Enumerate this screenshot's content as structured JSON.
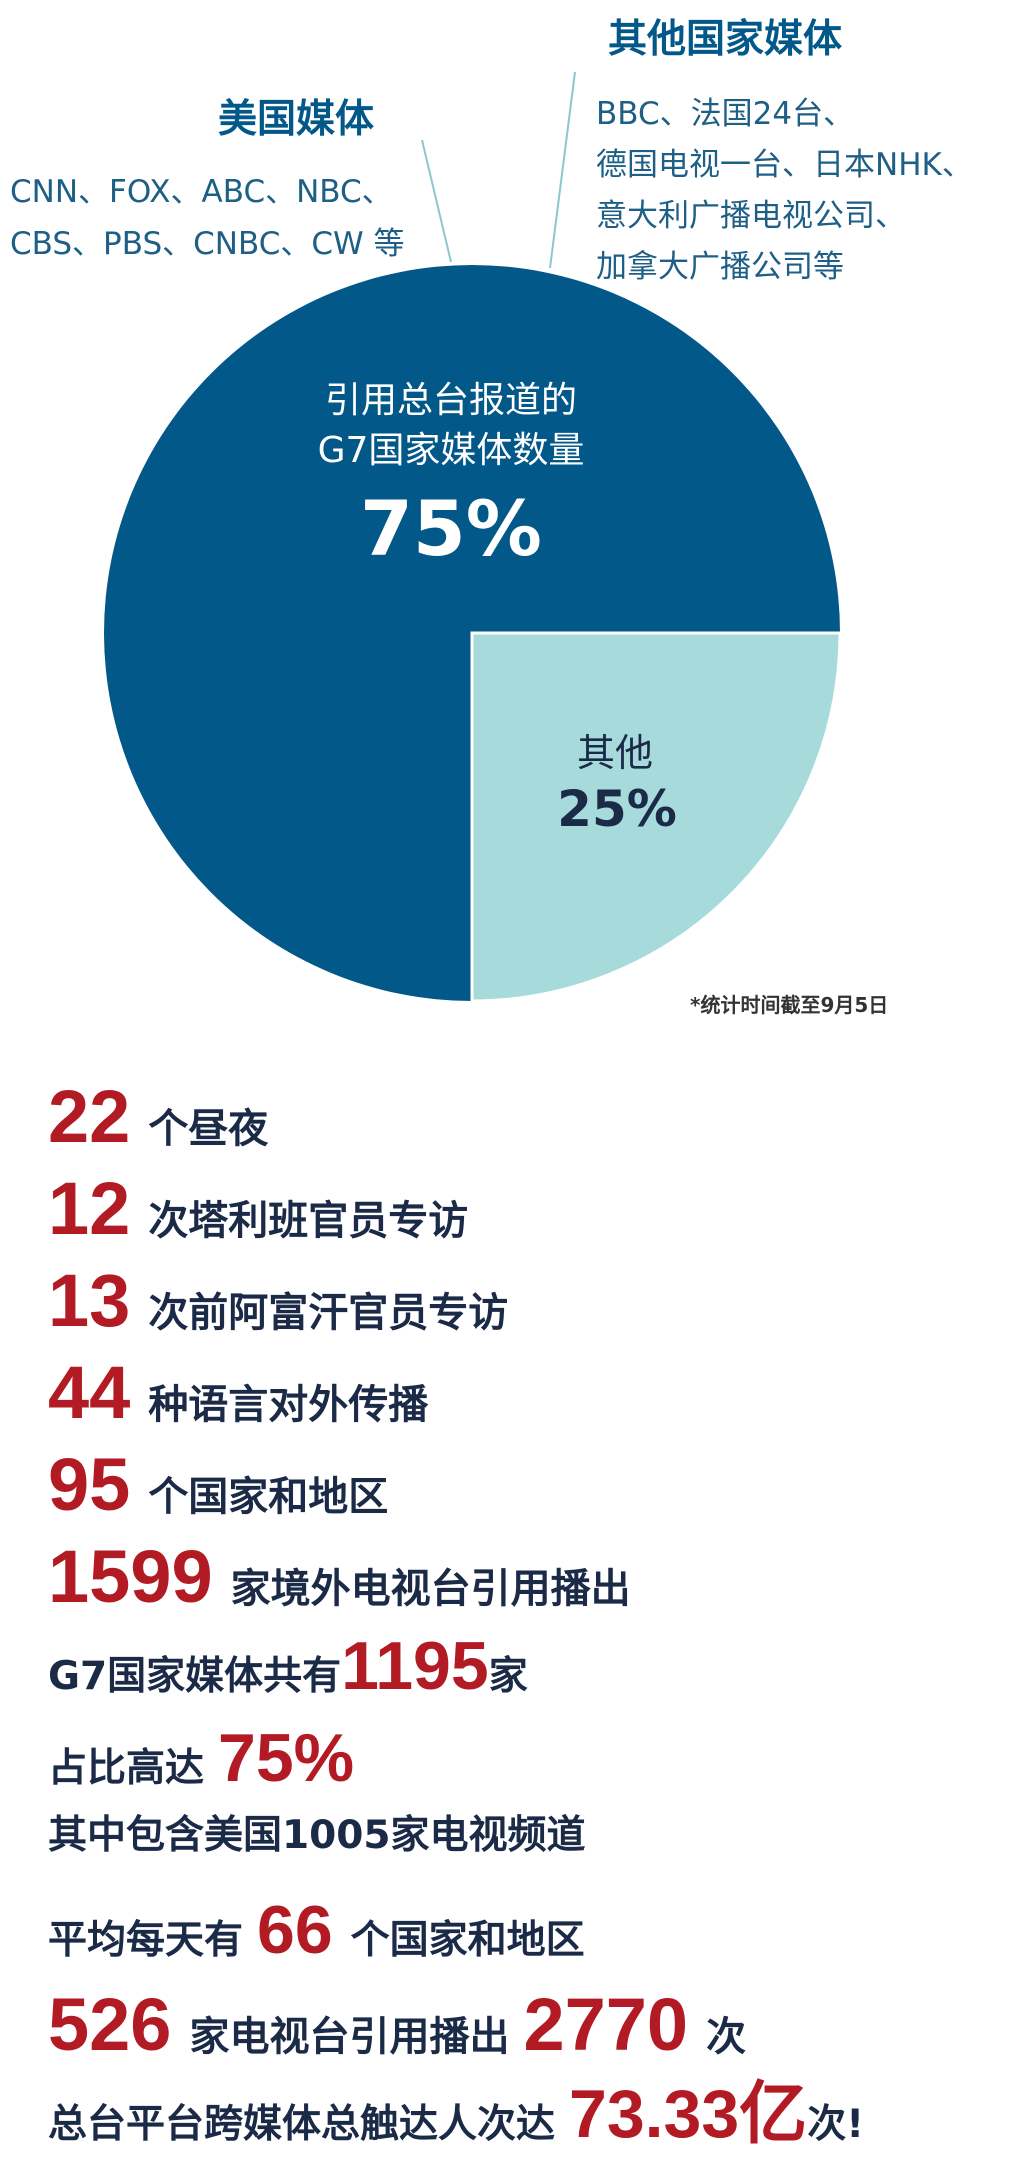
{
  "chart_data": {
    "type": "pie",
    "slices": [
      {
        "label_line1": "引用总台报道的",
        "label_line2": "G7国家媒体数量",
        "value": 75,
        "display": "75%",
        "color": "#03588a"
      },
      {
        "label_line1": "其他",
        "value": 25,
        "display": "25%",
        "color": "#a6dadb"
      }
    ],
    "callouts": [
      {
        "title": "美国媒体",
        "lines": [
          "CNN、FOX、ABC、NBC、",
          "CBS、PBS、CNBC、CW 等"
        ]
      },
      {
        "title": "其他国家媒体",
        "lines": [
          "BBC、法国24台、",
          "德国电视一台、日本NHK、",
          "意大利广播电视公司、",
          "加拿大广播公司等"
        ]
      }
    ],
    "footnote": "*统计时间截至9月5日",
    "colors": {
      "accent_text": "#03588a",
      "callout_body": "#1e5f86",
      "leader_line": "#8cc7ce",
      "dark_text": "#1a2a47"
    }
  },
  "stats": [
    {
      "num": "22",
      "text": "个昼夜"
    },
    {
      "num": "12",
      "text": "次塔利班官员专访"
    },
    {
      "num": "13",
      "text": "次前阿富汗官员专访"
    },
    {
      "num": "44",
      "text": "种语言对外传播"
    },
    {
      "num": "95",
      "text": "个国家和地区"
    },
    {
      "num": "1599",
      "text": "家境外电视台引用播出"
    },
    {
      "pre": "G7国家媒体共有",
      "num": "1195",
      "text": "家"
    },
    {
      "pre": "占比高达",
      "num": "75%"
    },
    {
      "pre": "其中包含美国1005家电视频道"
    },
    {
      "pre": "平均每天有",
      "num": "66",
      "text": "个国家和地区"
    },
    {
      "num": "526",
      "text": "家电视台引用播出",
      "num2": "2770",
      "text2": "次"
    },
    {
      "pre": "总台平台跨媒体总触达人次达",
      "num": "73.33亿",
      "text": "次!"
    }
  ]
}
